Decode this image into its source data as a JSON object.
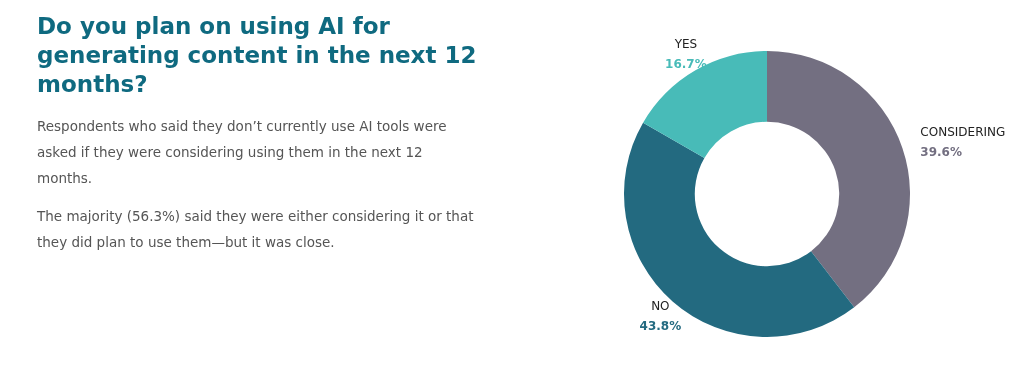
{
  "chart_data": {
    "type": "donut",
    "title": "Do you plan on using AI for generating content in the next 12 months?",
    "annotations": [
      "Respondents who said they don’t currently use AI tools were asked if they were considering using them in the next 12 months.",
      "The majority (56.3%) said they were either considering it or that they did plan to use them—but it was close."
    ],
    "categories": [
      "CONSIDERING",
      "NO",
      "YES"
    ],
    "values": [
      39.6,
      43.8,
      16.7
    ],
    "colors": [
      "#736f81",
      "#236a80",
      "#48bbb8"
    ],
    "value_labels": [
      "39.6%",
      "43.8%",
      "16.7%"
    ]
  }
}
